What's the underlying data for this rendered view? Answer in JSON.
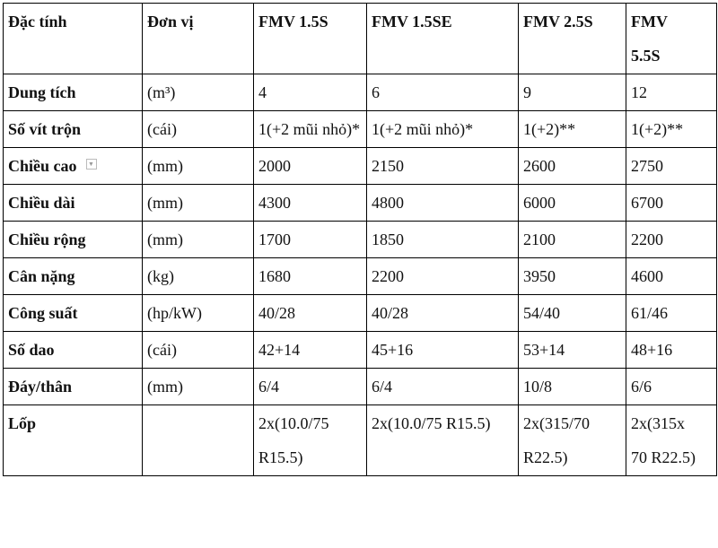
{
  "table": {
    "header": [
      "Đặc tính",
      "Đơn vị",
      "FMV 1.5S",
      "FMV 1.5SE",
      "FMV 2.5S",
      "FMV 5.5S"
    ],
    "rows": [
      [
        "Dung tích",
        "(m³)",
        "4",
        "6",
        "9",
        "12"
      ],
      [
        "Số vít trộn",
        "(cái)",
        "1(+2 mũi nhỏ)*",
        "1(+2 mũi nhỏ)*",
        "1(+2)**",
        "1(+2)**"
      ],
      [
        "Chiều cao",
        "(mm)",
        "2000",
        "2150",
        "2600",
        "2750"
      ],
      [
        "Chiều dài",
        "(mm)",
        "4300",
        "4800",
        "6000",
        "6700"
      ],
      [
        "Chiều rộng",
        "(mm)",
        "1700",
        "1850",
        "2100",
        "2200"
      ],
      [
        "Cân nặng",
        "(kg)",
        "1680",
        "2200",
        "3950",
        "4600"
      ],
      [
        "Công suất",
        "(hp/kW)",
        "40/28",
        "40/28",
        "54/40",
        "61/46"
      ],
      [
        "Số dao",
        "(cái)",
        "42+14",
        "45+16",
        "53+14",
        "48+16"
      ],
      [
        "Đáy/thân",
        "(mm)",
        "6/4",
        "6/4",
        "10/8",
        "6/6"
      ],
      [
        "Lốp",
        null,
        "2x(10.0/75 R15.5)",
        "2x(10.0/75 R15.5)",
        "2x(315/70 R22.5)",
        "2x(315x 70 R22.5)"
      ]
    ]
  }
}
